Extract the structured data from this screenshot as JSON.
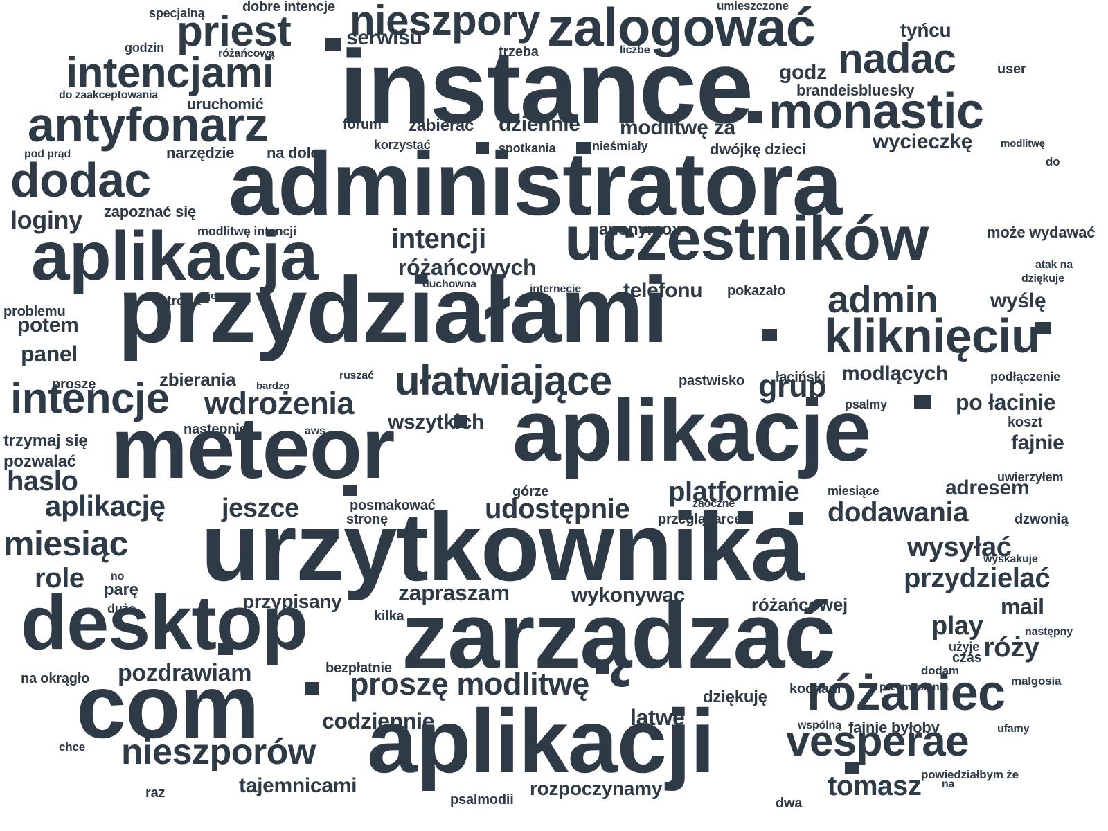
{
  "wordcloud": {
    "text_color": "#2e3a45",
    "background": "#ffffff",
    "words": [
      "instance",
      "administratora",
      "przydziałami",
      "aplikacje",
      "urzytkownika",
      "meteor",
      "zarządzać",
      "aplikacja",
      "aplikacji",
      "desktop",
      "com",
      "uczestników",
      "zalogować",
      "monastic",
      "antyfonarz",
      "dodac",
      "intencjami",
      "priest",
      "nieszpory",
      "nadac",
      "różaniec",
      "kliknięciu",
      "vesperae",
      "nieszporów",
      "intencje",
      "admin",
      "ułatwiające",
      "miesiąc",
      "proszę modlitwę",
      "wdrożenia",
      "platformie",
      "udostępnie",
      "jeszce",
      "aplikację",
      "dodawania",
      "wysyłać",
      "przydzielać",
      "tomasz",
      "haslo",
      "intencji",
      "loginy",
      "grup",
      "role",
      "play",
      "róży",
      "pozdrawiam",
      "codziennie",
      "zapraszam",
      "wykonywac",
      "latwe",
      "tajemnicami",
      "rozpoczynamy",
      "serwisu",
      "dziennie",
      "modlitwę za",
      "wycieczkę",
      "godz",
      "tyńcu",
      "brandeisbluesky",
      "różańcowych",
      "telefonu",
      "wyślę",
      "panel",
      "potem",
      "modlących",
      "wszytkich",
      "po łacinie",
      "fajnie",
      "adresem",
      "mail",
      "różańcowej",
      "przypisany",
      "dziękuję",
      "zbierania",
      "uruchomić",
      "zabierać",
      "zapoznać się",
      "modlitwę intencji",
      "anonymox",
      "może wydawać",
      "pokazało",
      "strona",
      "specjalną",
      "dobre intencje",
      "umieszczone",
      "godzin",
      "różańcową",
      "trzeba",
      "liczbe",
      "user",
      "do zaakceptowania",
      "forum",
      "korzystać",
      "spotkania",
      "nieśmiały",
      "dwójkę dzieci",
      "modlitwę",
      "do",
      "pod prąd",
      "narzędzie",
      "na dole",
      "atak na",
      "dziękuje",
      "problemu",
      "jeszcze",
      "duchowna",
      "internecie",
      "proszę",
      "bardzo",
      "ruszać",
      "pastwisko",
      "łaciński",
      "podłączenie",
      "psalmy",
      "koszt",
      "następnie",
      "aws",
      "trzymaj się",
      "pozwalać",
      "uwierzyłem",
      "górze",
      "miesiące",
      "posmakować",
      "zaoczne",
      "stronę",
      "przeglądarce",
      "dzwonią",
      "wyskakuje",
      "no",
      "parę",
      "dużo",
      "kilka",
      "następny",
      "użyje",
      "czas",
      "na okrągło",
      "bezpłatnie",
      "dodam",
      "kochani",
      "przemyslenia",
      "malgosia",
      "wspólną",
      "fajnie byłoby",
      "ufamy",
      "chce",
      "powiedziałbym że",
      "na",
      "raz",
      "psalmodii",
      "dwa"
    ]
  }
}
